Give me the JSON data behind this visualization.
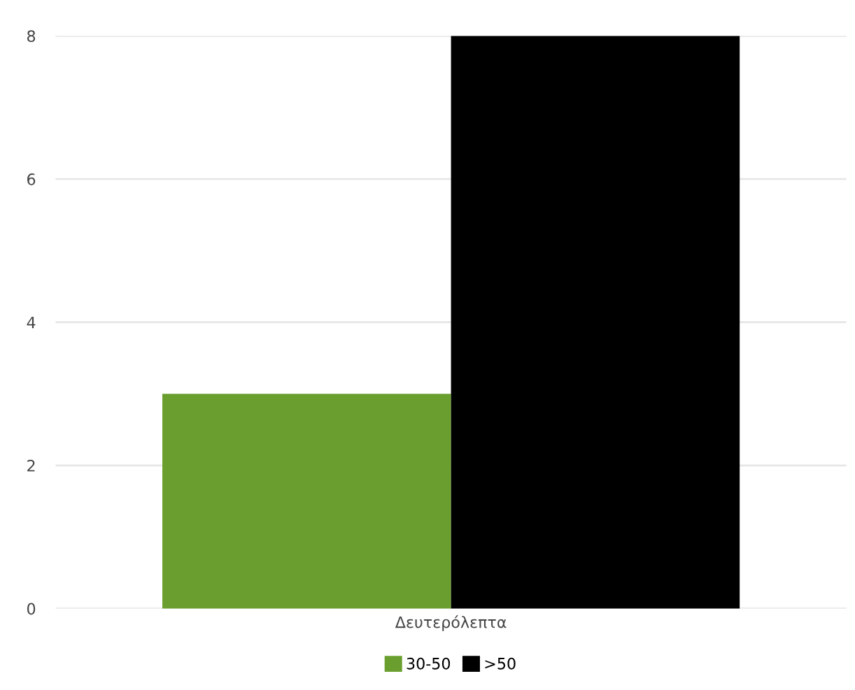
{
  "chart_data": {
    "type": "bar",
    "categories": [
      "Δευτερόλεπτα"
    ],
    "series": [
      {
        "name": "30-50",
        "color": "#6a9f2f",
        "values": [
          3
        ]
      },
      {
        "name": ">50",
        "color": "#000000",
        "values": [
          8
        ]
      }
    ],
    "ylim": [
      0,
      8
    ],
    "yticks": [
      0,
      2,
      4,
      6,
      8
    ],
    "grid": "y",
    "legend": "bottom"
  }
}
